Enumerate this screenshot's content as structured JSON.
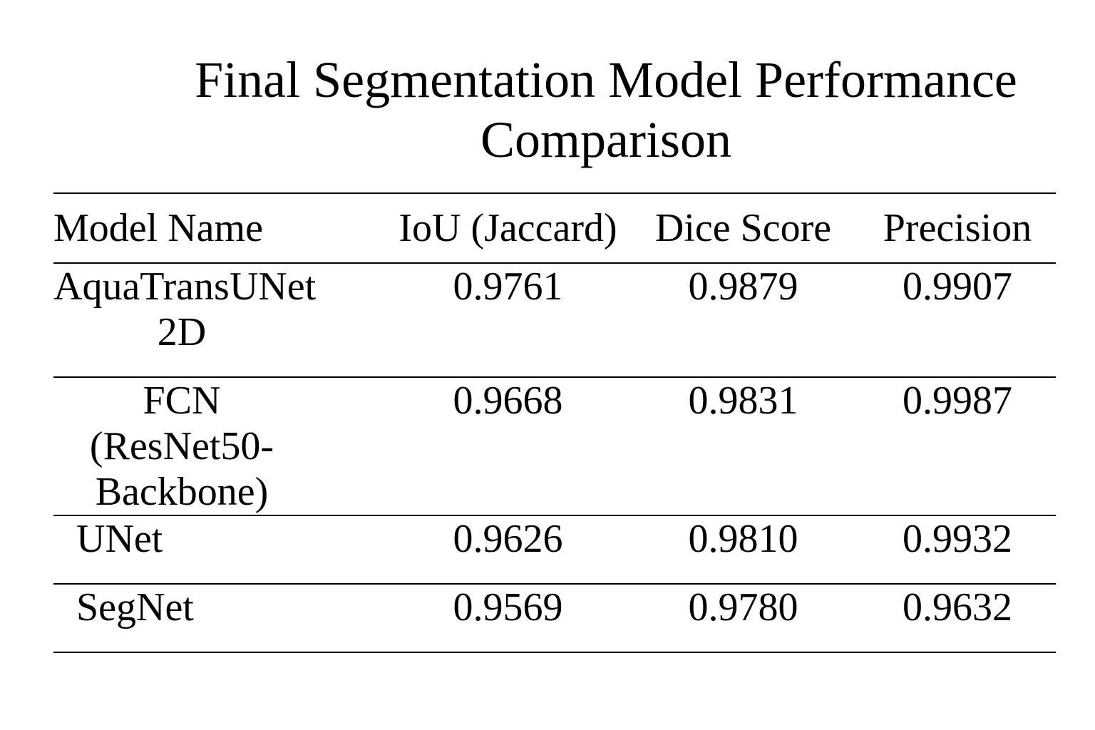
{
  "title": {
    "line1": "Final Segmentation Model Performance",
    "line2": "Comparison"
  },
  "table": {
    "headers": [
      "Model Name",
      "IoU (Jaccard)",
      "Dice Score",
      "Precision"
    ],
    "rows": [
      {
        "model_line1": "AquaTransUNet",
        "model_line2": "2D",
        "iou": "0.9761",
        "dice": "0.9879",
        "precision": "0.9907"
      },
      {
        "model_line1": "FCN (ResNet50-",
        "model_line2": "Backbone)",
        "iou": "0.9668",
        "dice": "0.9831",
        "precision": "0.9987"
      },
      {
        "model": "UNet",
        "iou": "0.9626",
        "dice": "0.9810",
        "precision": "0.9932"
      },
      {
        "model": "SegNet",
        "iou": "0.9569",
        "dice": "0.9780",
        "precision": "0.9632"
      }
    ]
  }
}
